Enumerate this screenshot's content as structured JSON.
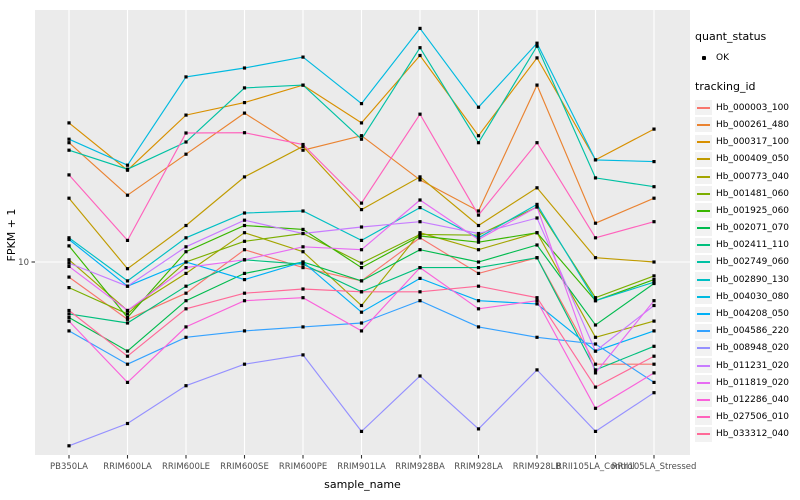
{
  "chart_data": {
    "type": "line",
    "title": "",
    "xlabel": "sample_name",
    "ylabel": "FPKM + 1",
    "y_scale": "log10",
    "y_breaks": [
      10
    ],
    "y_tick_labels": [
      "10"
    ],
    "y_domain": [
      1.7,
      97
    ],
    "grid": "major-only",
    "legend_position": "right",
    "categories": [
      "PB350LA",
      "RRIM600LA",
      "RRIM600LE",
      "RRIM600SE",
      "RRIM600PE",
      "RRIM901LA",
      "RRIM928BA",
      "RRIM928LA",
      "RRIM928LB",
      "RRII105LA_Control",
      "RRII105LA_Stressed"
    ],
    "series": [
      {
        "name": "Hb_000003_100",
        "color": "#F8766D",
        "values": [
          8.7,
          5.9,
          7.5,
          11.2,
          9.5,
          8.4,
          12.5,
          9.0,
          10.4,
          3.9,
          3.9
        ]
      },
      {
        "name": "Hb_000261_480",
        "color": "#EA8331",
        "values": [
          30,
          18.5,
          27,
          39.4,
          28,
          32,
          21.3,
          16,
          51,
          14.3,
          18
        ]
      },
      {
        "name": "Hb_000317_100",
        "color": "#D89000",
        "values": [
          36,
          23.3,
          38.7,
          43.4,
          51,
          36,
          67,
          32,
          65.5,
          25.6,
          34
        ]
      },
      {
        "name": "Hb_000409_050",
        "color": "#C09B00",
        "values": [
          18,
          9.4,
          14,
          21.9,
          29,
          16.2,
          21.9,
          14,
          19.8,
          10.4,
          10
        ]
      },
      {
        "name": "Hb_000773_040",
        "color": "#A3A500",
        "values": [
          10.2,
          6.4,
          9,
          13.1,
          11,
          6.7,
          13.1,
          11.2,
          13.1,
          5.0,
          5.8
        ]
      },
      {
        "name": "Hb_001481_060",
        "color": "#7CAE00",
        "values": [
          7.9,
          6.2,
          10,
          12.1,
          13,
          9.9,
          12.9,
          12.8,
          16.6,
          7.2,
          8.8
        ]
      },
      {
        "name": "Hb_001925_060",
        "color": "#39B600",
        "values": [
          11.6,
          6.0,
          11,
          14.0,
          13.5,
          9.5,
          12.7,
          12.0,
          13.1,
          7.0,
          8.5
        ]
      },
      {
        "name": "Hb_002071_070",
        "color": "#00BB4E",
        "values": [
          6.0,
          4.4,
          7,
          9.0,
          10,
          8.4,
          11.2,
          10,
          11.7,
          5.6,
          8.2
        ]
      },
      {
        "name": "Hb_002411_110",
        "color": "#00BF7D",
        "values": [
          6.2,
          5.7,
          8,
          10.2,
          9.8,
          7.6,
          9.5,
          9.5,
          10.4,
          3.7,
          4.6
        ]
      },
      {
        "name": "Hb_002749_060",
        "color": "#00C1A3",
        "values": [
          28,
          23.5,
          30.2,
          49.7,
          51,
          31,
          72,
          30,
          73,
          21.7,
          20
        ]
      },
      {
        "name": "Hb_002890_130",
        "color": "#00BFC4",
        "values": [
          12.5,
          8.4,
          12.5,
          15.7,
          16,
          12.2,
          16.5,
          12.5,
          17.0,
          7.0,
          8.3
        ]
      },
      {
        "name": "Hb_004030_080",
        "color": "#00BAE0",
        "values": [
          31,
          24.4,
          55,
          59.7,
          66,
          43,
          86,
          41.6,
          75,
          25.6,
          25.2
        ]
      },
      {
        "name": "Hb_004208_050",
        "color": "#00B0F6",
        "values": [
          12.3,
          8.0,
          10,
          8.5,
          10,
          6.3,
          8.6,
          7.0,
          6.8,
          4.4,
          5.3
        ]
      },
      {
        "name": "Hb_004586_220",
        "color": "#35A2FF",
        "values": [
          5.3,
          3.9,
          5.0,
          5.3,
          5.5,
          5.7,
          7.0,
          5.5,
          5.0,
          4.7,
          3.3
        ]
      },
      {
        "name": "Hb_008948_020",
        "color": "#9590FF",
        "values": [
          1.84,
          2.26,
          3.2,
          3.9,
          4.25,
          2.1,
          3.5,
          2.15,
          3.7,
          2.1,
          3.0
        ]
      },
      {
        "name": "Hb_011231_020",
        "color": "#C77CFF",
        "values": [
          9.9,
          8.0,
          11.5,
          14.7,
          13,
          13.8,
          14.5,
          13,
          15.0,
          4.4,
          6.7
        ]
      },
      {
        "name": "Hb_011819_020",
        "color": "#E76BF3",
        "values": [
          9.6,
          6.4,
          9.5,
          10.2,
          11.5,
          11.2,
          17.7,
          12.3,
          16.6,
          3.6,
          7.0
        ]
      },
      {
        "name": "Hb_012286_040",
        "color": "#FA62DB",
        "values": [
          5.8,
          3.3,
          5.5,
          7.0,
          7.2,
          5.3,
          9.5,
          6.5,
          7.0,
          2.6,
          3.6
        ]
      },
      {
        "name": "Hb_027506_010",
        "color": "#FF62BC",
        "values": [
          22.3,
          12.2,
          32.8,
          32.9,
          29.5,
          17.2,
          39,
          15.4,
          30,
          12.5,
          14.5
        ]
      },
      {
        "name": "Hb_033312_040",
        "color": "#FF6A98",
        "values": [
          6.4,
          4.2,
          6.5,
          7.5,
          7.8,
          7.6,
          7.6,
          8.0,
          7.2,
          3.16,
          4.2
        ]
      }
    ],
    "legend": {
      "quant_title": "quant_status",
      "quant_items": [
        {
          "label": "OK",
          "symbol": "black-point"
        }
      ],
      "tracking_title": "tracking_id"
    },
    "colors": {
      "panel_bg": "#EBEBEB",
      "grid": "#FFFFFF",
      "axis_text": "#4D4D4D",
      "axis_title": "#000000",
      "point": "#000000",
      "tick": "#333333",
      "legend_key_bg": "#F2F2F2"
    }
  }
}
